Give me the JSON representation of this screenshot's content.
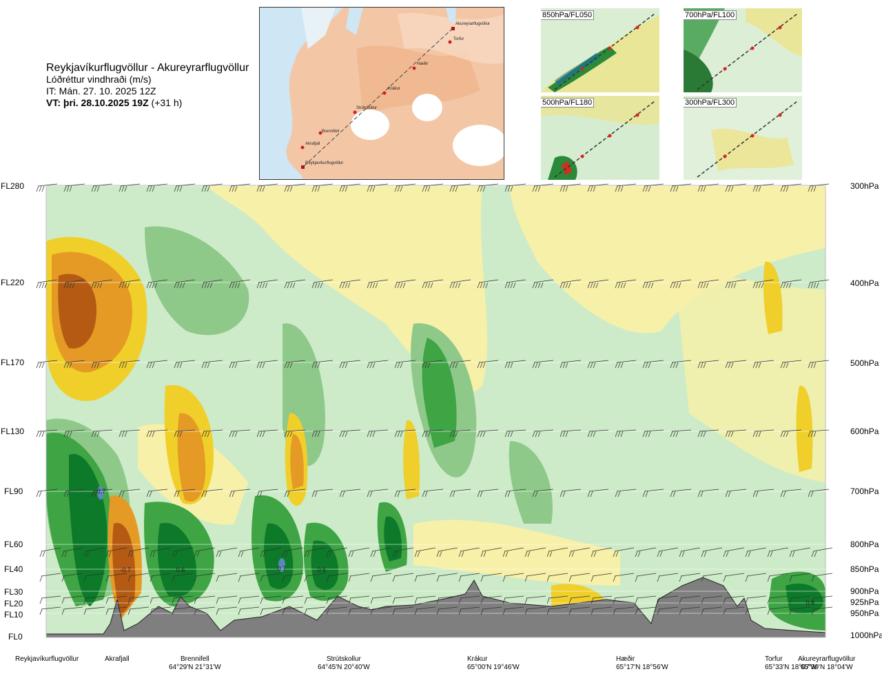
{
  "header": {
    "route": "Reykjavíkurflugvöllur - Akureyrarflugvöllur",
    "quantity": "Lóðréttur vindhraði (m/s)",
    "issue_time": "IT: Mán. 27. 10. 2025 12Z",
    "valid_prefix": "VT: þri. 28.10.2025 19Z",
    "valid_offset": " (+31 h)"
  },
  "route_map": {
    "waypoints": [
      "Akureyrarflugvöllur",
      "Torfur",
      "Hæðir",
      "Krákur",
      "Strútskollur",
      "Brennifell",
      "Akrafjall",
      "Reykjavíkurflugvöllur"
    ]
  },
  "mini_maps": [
    {
      "label": "850hPa/FL050"
    },
    {
      "label": "700hPa/FL100"
    },
    {
      "label": "500hPa/FL180"
    },
    {
      "label": "300hPa/FL300"
    }
  ],
  "levels_left": [
    "FL280",
    "FL220",
    "FL170",
    "FL130",
    "FL90",
    "FL60",
    "FL40",
    "FL30",
    "FL20",
    "FL10",
    "FL0"
  ],
  "levels_right": [
    "300hPa",
    "400hPa",
    "500hPa",
    "600hPa",
    "700hPa",
    "800hPa",
    "850hPa",
    "900hPa",
    "925hPa",
    "950hPa",
    "1000hPa"
  ],
  "locations": [
    {
      "name": "Reykjavíkurflugvöllur",
      "coord": ""
    },
    {
      "name": "Akrafjall",
      "coord": ""
    },
    {
      "name": "Brennifell",
      "coord": "64°29'N 21°31'W"
    },
    {
      "name": "Strútskollur",
      "coord": "64°45'N 20°40'W"
    },
    {
      "name": "Krákur",
      "coord": "65°00'N 19°46'W"
    },
    {
      "name": "Hæðir",
      "coord": "65°17'N 18°56'W"
    },
    {
      "name": "Torfur",
      "coord": "65°33'N 18°07'W"
    },
    {
      "name": "Akureyrarflugvöllur",
      "coord": "65°39'N 18°04'W"
    }
  ],
  "chart_data": {
    "type": "heatmap",
    "title": "Reykjavíkurflugvöllur - Akureyrarflugvöllur",
    "subtitle": "Lóðréttur vindhraði (m/s)",
    "y_levels_fl": [
      280,
      220,
      170,
      130,
      90,
      60,
      40,
      30,
      20,
      10,
      0
    ],
    "y_levels_hpa": [
      300,
      400,
      500,
      600,
      700,
      800,
      850,
      900,
      925,
      950,
      1000
    ],
    "x_locations": [
      "Reykjavíkurflugvöllur",
      "Akrafjall",
      "Brennifell",
      "Strútskollur",
      "Krákur",
      "Hæðir",
      "Torfur",
      "Akureyrarflugvöllur"
    ],
    "labeled_extrema": [
      {
        "location_near": "Reykjavíkurflugvöllur",
        "level": "FL90",
        "value": "0.7"
      },
      {
        "location_near": "Akrafjall",
        "level": "FL40",
        "value": "-0.7"
      },
      {
        "location_near": "Brennifell",
        "level": "FL40",
        "value": "0.6"
      },
      {
        "location_near": "Strútskollur",
        "level": "FL40",
        "value": "0.7"
      },
      {
        "location_near": "Strútskollur",
        "level": "FL40",
        "value": "0.6"
      },
      {
        "location_near": "Akureyrarflugvöllur",
        "level": "FL20",
        "value": "0.6"
      }
    ],
    "colors": {
      "strong_up": "#0d7a2a",
      "up": "#3ea444",
      "weak_up": "#8fc98a",
      "faint_up": "#cdebc8",
      "faint_down": "#f7f0a8",
      "weak_down": "#f0cf2a",
      "down": "#e59a25",
      "strong_down": "#b45a12",
      "terrain": "#7f7f7f",
      "extreme_up": "#5b88b8"
    }
  }
}
